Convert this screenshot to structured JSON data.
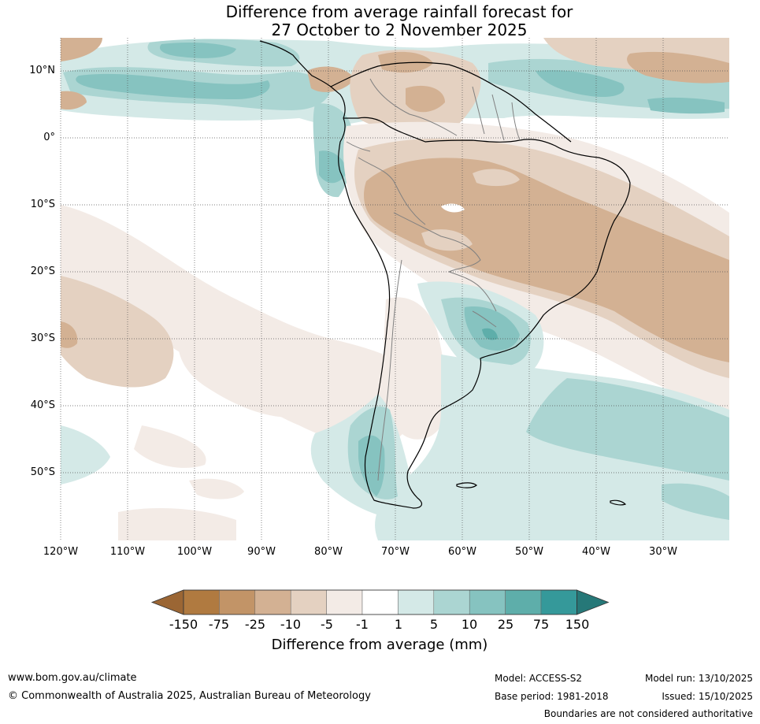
{
  "title": {
    "line1": "Difference from average rainfall forecast for",
    "line2": "27 October to 2 November 2025"
  },
  "map": {
    "lat_labels": [
      "10°N",
      "0°",
      "10°S",
      "20°S",
      "30°S",
      "40°S",
      "50°S"
    ],
    "lon_labels": [
      "120°W",
      "110°W",
      "100°W",
      "90°W",
      "80°W",
      "70°W",
      "60°W",
      "50°W",
      "40°W",
      "30°W"
    ]
  },
  "colorbar": {
    "ticks": [
      "-150",
      "-75",
      "-25",
      "-10",
      "-5",
      "-1",
      "1",
      "5",
      "10",
      "25",
      "75",
      "150"
    ],
    "label": "Difference from average (mm)",
    "colors": [
      "#9b6634",
      "#b07a40",
      "#c29467",
      "#d3b193",
      "#e4d1c1",
      "#f3ebe6",
      "#ffffff",
      "#d4e9e7",
      "#abd5d2",
      "#86c3c0",
      "#5eaeaa",
      "#35999a",
      "#267878"
    ]
  },
  "footer": {
    "website": "www.bom.gov.au/climate",
    "copyright": "© Commonwealth of Australia 2025, Australian Bureau of Meteorology",
    "model": "Model: ACCESS-S2",
    "base_period": "Base period: 1981-2018",
    "model_run": "Model run: 13/10/2025",
    "issued": "Issued: 15/10/2025",
    "boundaries": "Boundaries are not considered authoritative"
  }
}
